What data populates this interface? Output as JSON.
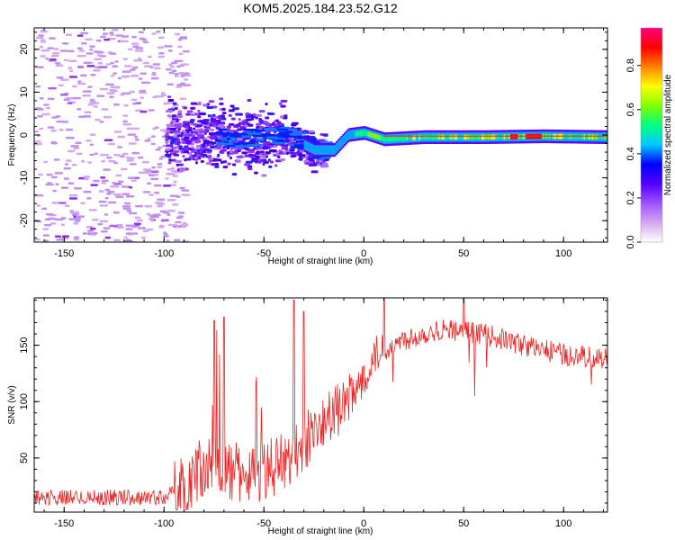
{
  "title": "KOM5.2025.184.23.52.G12",
  "chart_data": [
    {
      "type": "heatmap",
      "xlabel": "Height of straight line (km)",
      "ylabel": "Frequency (Hz)",
      "xlim": [
        -165,
        122
      ],
      "ylim": [
        -25,
        25
      ],
      "xticks": [
        -150,
        -100,
        -50,
        0,
        50,
        100
      ],
      "yticks": [
        -20,
        -10,
        0,
        10,
        20
      ],
      "colorbar": {
        "label": "Normalized spectral amplitude",
        "range": [
          0,
          0.97
        ],
        "ticks": [
          0.0,
          0.2,
          0.4,
          0.6,
          0.8
        ],
        "colors": [
          "#ffffff",
          "#d4a8f0",
          "#a050ff",
          "#5000ff",
          "#0000ff",
          "#00c8ff",
          "#00ff80",
          "#80ff00",
          "#ffff00",
          "#ff8000",
          "#ff0000",
          "#ff0080"
        ]
      },
      "ridge_line": [
        {
          "x": -100,
          "y": 0.0
        },
        {
          "x": -60,
          "y": -0.5
        },
        {
          "x": -40,
          "y": 0.0
        },
        {
          "x": -25,
          "y": -3.5
        },
        {
          "x": -15,
          "y": -3.5
        },
        {
          "x": -8,
          "y": 0.0
        },
        {
          "x": 0,
          "y": 0.5
        },
        {
          "x": 10,
          "y": -1.0
        },
        {
          "x": 30,
          "y": -0.5
        },
        {
          "x": 60,
          "y": -0.5
        },
        {
          "x": 90,
          "y": -0.3
        },
        {
          "x": 122,
          "y": -0.5
        }
      ]
    },
    {
      "type": "line",
      "xlabel": "Height of straight line (km)",
      "ylabel": "SNR (v/v)",
      "xlim": [
        -165,
        122
      ],
      "ylim": [
        2,
        192
      ],
      "xticks": [
        -150,
        -100,
        -50,
        0,
        50,
        100
      ],
      "yticks": [
        50,
        100,
        150
      ],
      "color": "#ee2222",
      "trend": [
        {
          "x": -165,
          "y": 15
        },
        {
          "x": -100,
          "y": 15
        },
        {
          "x": -90,
          "y": 25
        },
        {
          "x": -80,
          "y": 45
        },
        {
          "x": -60,
          "y": 35
        },
        {
          "x": -40,
          "y": 45
        },
        {
          "x": -20,
          "y": 80
        },
        {
          "x": -5,
          "y": 105
        },
        {
          "x": 5,
          "y": 140
        },
        {
          "x": 20,
          "y": 155
        },
        {
          "x": 40,
          "y": 165
        },
        {
          "x": 60,
          "y": 160
        },
        {
          "x": 80,
          "y": 150
        },
        {
          "x": 100,
          "y": 142
        },
        {
          "x": 122,
          "y": 138
        }
      ],
      "peak_spikes": [
        {
          "x": -30,
          "y": 180
        },
        {
          "x": -35,
          "y": 190
        },
        {
          "x": 10,
          "y": 192
        },
        {
          "x": 50,
          "y": 192
        },
        {
          "x": -75,
          "y": 172
        },
        {
          "x": -70,
          "y": 175
        }
      ]
    }
  ]
}
